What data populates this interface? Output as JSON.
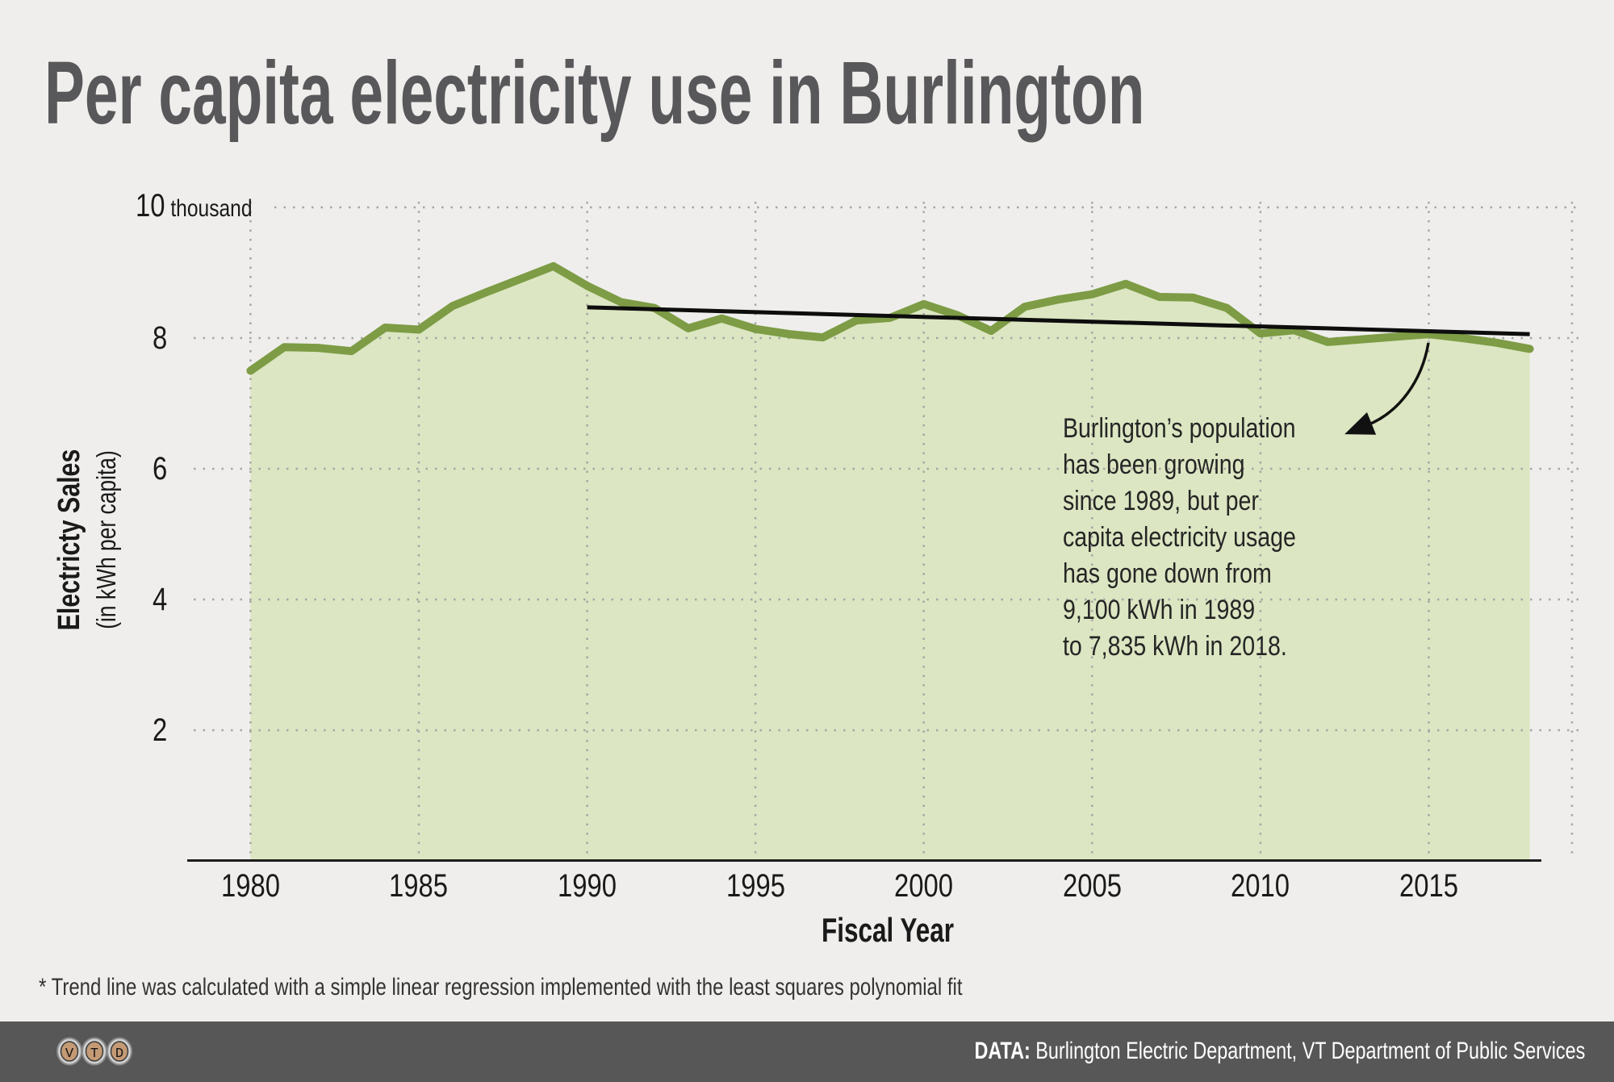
{
  "title": "Per capita electricity use in Burlington",
  "chart_data": {
    "type": "area",
    "title": "Per capita electricity use in Burlington",
    "xlabel": "Fiscal Year",
    "ylabel": "Electricty Sales",
    "ylabel_sub": "(in kWh per capita)",
    "y_top_tick_label": "10",
    "y_top_tick_suffix": " thousand",
    "y_ticks": [
      10,
      8,
      6,
      4,
      2
    ],
    "x_ticks": [
      1980,
      1985,
      1990,
      1995,
      2000,
      2005,
      2010,
      2015
    ],
    "ylim": [
      0,
      10
    ],
    "xlim": [
      1980,
      2018
    ],
    "grid": true,
    "x": [
      1980,
      1981,
      1982,
      1983,
      1984,
      1985,
      1986,
      1987,
      1988,
      1989,
      1990,
      1991,
      1992,
      1993,
      1994,
      1995,
      1996,
      1997,
      1998,
      1999,
      2000,
      2001,
      2002,
      2003,
      2004,
      2005,
      2006,
      2007,
      2008,
      2009,
      2010,
      2011,
      2012,
      2013,
      2014,
      2015,
      2016,
      2017,
      2018
    ],
    "values": [
      7.5,
      7.86,
      7.85,
      7.8,
      8.16,
      8.13,
      8.49,
      8.7,
      8.9,
      9.1,
      8.8,
      8.55,
      8.46,
      8.15,
      8.3,
      8.14,
      8.06,
      8.01,
      8.27,
      8.31,
      8.52,
      8.35,
      8.11,
      8.48,
      8.59,
      8.67,
      8.83,
      8.63,
      8.62,
      8.46,
      8.07,
      8.12,
      7.94,
      7.98,
      8.02,
      8.06,
      8.0,
      7.93,
      7.835
    ],
    "series_name": "Electricity sales in thousand kWh per capita",
    "trend_line": {
      "x1": 1990,
      "y1": 8.47,
      "x2": 2018,
      "y2": 8.06
    },
    "annotation": "Burlington’s population\nhas been growing\nsince 1989, but per\ncapita electricity usage\nhas gone down from\n9,100 kWh in 1989\nto 7,835 kWh in 2018.",
    "legend_position": "none"
  },
  "footnote": "* Trend line was calculated with a simple linear regression implemented with the least squares polynomial fit",
  "footer": {
    "logo_letters": [
      "V",
      "T",
      "D"
    ],
    "data_label": "DATA:",
    "data_text": " Burlington Electric Department, VT Department of Public Services"
  },
  "colors": {
    "background": "#efeeec",
    "area_fill": "#dce6c2",
    "line_green": "#7d9c45",
    "trend_black": "#0d0d0d",
    "grid_gray": "#a6a6a6",
    "axis_dark": "#1c1c1c",
    "title_gray": "#58585a",
    "footer_bg": "#575757",
    "footer_text": "#ffffff",
    "key_tan": "#c49a75"
  }
}
